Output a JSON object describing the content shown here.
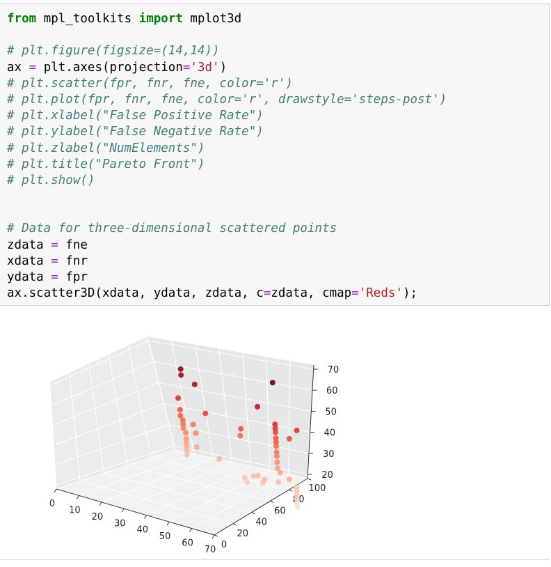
{
  "notebook": {
    "code_lines": [
      [
        {
          "t": "from",
          "c": "kw"
        },
        {
          "t": " mpl_toolkits "
        },
        {
          "t": "import",
          "c": "kw"
        },
        {
          "t": " mplot3d"
        }
      ],
      [],
      [
        {
          "t": "# plt.figure(figsize=(14,14))",
          "c": "cm"
        }
      ],
      [
        {
          "t": "ax "
        },
        {
          "t": "=",
          "c": "op"
        },
        {
          "t": " plt.axes(projection"
        },
        {
          "t": "=",
          "c": "op"
        },
        {
          "t": "'3d'",
          "c": "st"
        },
        {
          "t": ")"
        }
      ],
      [
        {
          "t": "# plt.scatter(fpr, fnr, fne, color='r')",
          "c": "cm"
        }
      ],
      [
        {
          "t": "# plt.plot(fpr, fnr, fne, color='r', drawstyle='steps-post')",
          "c": "cm"
        }
      ],
      [
        {
          "t": "# plt.xlabel(\"False Positive Rate\")",
          "c": "cm"
        }
      ],
      [
        {
          "t": "# plt.ylabel(\"False Negative Rate\")",
          "c": "cm"
        }
      ],
      [
        {
          "t": "# plt.zlabel(\"NumElements\")",
          "c": "cm"
        }
      ],
      [
        {
          "t": "# plt.title(\"Pareto Front\")",
          "c": "cm"
        }
      ],
      [
        {
          "t": "# plt.show()",
          "c": "cm"
        }
      ],
      [],
      [],
      [
        {
          "t": "# Data for three-dimensional scattered points",
          "c": "cm"
        }
      ],
      [
        {
          "t": "zdata "
        },
        {
          "t": "=",
          "c": "op"
        },
        {
          "t": " fne"
        }
      ],
      [
        {
          "t": "xdata "
        },
        {
          "t": "=",
          "c": "op"
        },
        {
          "t": " fnr"
        }
      ],
      [
        {
          "t": "ydata "
        },
        {
          "t": "=",
          "c": "op"
        },
        {
          "t": " fpr"
        }
      ],
      [
        {
          "t": "ax.scatter3D(xdata, ydata, zdata, c"
        },
        {
          "t": "=",
          "c": "op"
        },
        {
          "t": "zdata, cmap"
        },
        {
          "t": "=",
          "c": "op"
        },
        {
          "t": "'Reds'",
          "c": "st"
        },
        {
          "t": ");"
        }
      ]
    ]
  },
  "chart_data": {
    "type": "scatter",
    "title": "",
    "xlabel": "",
    "ylabel": "",
    "zlabel": "",
    "cmap": "Reds",
    "x_ticks": [
      "0",
      "10",
      "20",
      "30",
      "40",
      "50",
      "60",
      "70"
    ],
    "y_ticks": [
      "0",
      "20",
      "40",
      "60",
      "80",
      "100"
    ],
    "z_ticks": [
      "20",
      "30",
      "40",
      "50",
      "60",
      "70"
    ],
    "xlim": [
      0,
      70
    ],
    "ylim": [
      0,
      100
    ],
    "zlim": [
      18,
      72
    ],
    "grid": true,
    "points": [
      {
        "x": 10,
        "y": 90,
        "z": 64
      },
      {
        "x": 10,
        "y": 90,
        "z": 61
      },
      {
        "x": 17,
        "y": 88,
        "z": 59
      },
      {
        "x": 7,
        "y": 92,
        "z": 48
      },
      {
        "x": 7,
        "y": 93,
        "z": 42
      },
      {
        "x": 7,
        "y": 93,
        "z": 39
      },
      {
        "x": 8,
        "y": 93,
        "z": 37
      },
      {
        "x": 8,
        "y": 93,
        "z": 35
      },
      {
        "x": 8,
        "y": 93,
        "z": 33
      },
      {
        "x": 9,
        "y": 93,
        "z": 31
      },
      {
        "x": 9,
        "y": 93,
        "z": 28
      },
      {
        "x": 9,
        "y": 93,
        "z": 26
      },
      {
        "x": 9,
        "y": 93,
        "z": 24
      },
      {
        "x": 9,
        "y": 93,
        "z": 22
      },
      {
        "x": 9,
        "y": 93,
        "z": 20
      },
      {
        "x": 12,
        "y": 94,
        "z": 36
      },
      {
        "x": 13,
        "y": 94,
        "z": 32
      },
      {
        "x": 13,
        "y": 94,
        "z": 25
      },
      {
        "x": 20,
        "y": 90,
        "z": 45
      },
      {
        "x": 24,
        "y": 92,
        "z": 23
      },
      {
        "x": 50,
        "y": 92,
        "z": 70
      },
      {
        "x": 42,
        "y": 93,
        "z": 55
      },
      {
        "x": 50,
        "y": 92,
        "z": 49
      },
      {
        "x": 50,
        "y": 92,
        "z": 47
      },
      {
        "x": 50,
        "y": 92,
        "z": 45
      },
      {
        "x": 50,
        "y": 92,
        "z": 42
      },
      {
        "x": 50,
        "y": 92,
        "z": 40
      },
      {
        "x": 50,
        "y": 92,
        "z": 38
      },
      {
        "x": 50,
        "y": 92,
        "z": 35
      },
      {
        "x": 50,
        "y": 92,
        "z": 33
      },
      {
        "x": 50,
        "y": 92,
        "z": 30
      },
      {
        "x": 50,
        "y": 92,
        "z": 27
      },
      {
        "x": 58,
        "y": 95,
        "z": 48
      },
      {
        "x": 55,
        "y": 94,
        "z": 43
      },
      {
        "x": 35,
        "y": 91,
        "z": 42
      },
      {
        "x": 34,
        "y": 92,
        "z": 38
      },
      {
        "x": 40,
        "y": 90,
        "z": 20
      },
      {
        "x": 42,
        "y": 90,
        "z": 21
      },
      {
        "x": 44,
        "y": 90,
        "z": 18
      },
      {
        "x": 36,
        "y": 90,
        "z": 18
      },
      {
        "x": 37,
        "y": 90,
        "z": 16
      },
      {
        "x": 45,
        "y": 90,
        "z": 20
      },
      {
        "x": 51,
        "y": 92,
        "z": 25
      },
      {
        "x": 55,
        "y": 92,
        "z": 23
      },
      {
        "x": 50,
        "y": 92,
        "z": 20
      },
      {
        "x": 58,
        "y": 92,
        "z": 20
      },
      {
        "x": 58,
        "y": 92,
        "z": 18
      },
      {
        "x": 58,
        "y": 92,
        "z": 16
      },
      {
        "x": 58,
        "y": 92,
        "z": 14
      },
      {
        "x": 58,
        "y": 92,
        "z": 12
      },
      {
        "x": 58,
        "y": 92,
        "z": 10
      }
    ]
  }
}
